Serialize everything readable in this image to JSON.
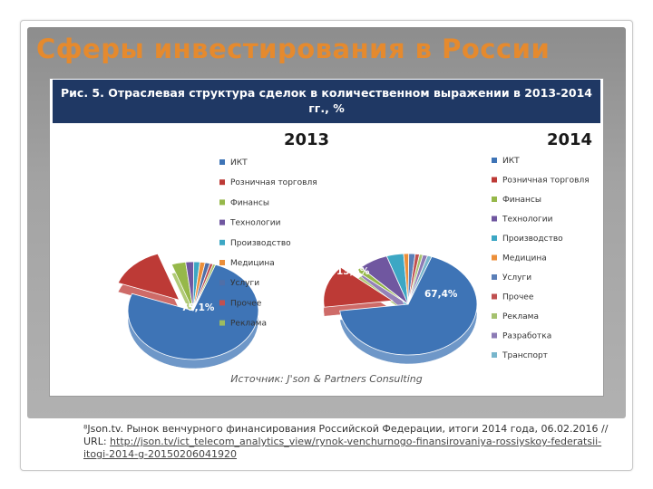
{
  "slide": {
    "title": "Сферы инвестирования в России"
  },
  "figure": {
    "caption": "Рис. 5. Отраслевая структура сделок в количественном выражении в 2013-2014 гг., %",
    "source": "Источник: J'son & Partners Consulting"
  },
  "chart_data": [
    {
      "type": "pie",
      "title": "2013",
      "categories": [
        "ИКТ",
        "Розничная торговля",
        "Финансы",
        "Технологии",
        "Производство",
        "Медицина",
        "Услуги",
        "Прочее",
        "Реклама"
      ],
      "values": [
        75.1,
        14.0,
        3.5,
        2.0,
        1.5,
        1.3,
        1.2,
        0.8,
        0.6
      ],
      "data_labels": [
        "75,1%",
        "14,0%",
        "",
        "",
        "",
        "",
        "",
        "",
        ""
      ],
      "colors": [
        "#3e74b6",
        "#bd3a36",
        "#96b84a",
        "#7057a0",
        "#3da7c4",
        "#ec8f3a",
        "#4f6fa8",
        "#c05050",
        "#9dbb60"
      ],
      "legend_placement": "right"
    },
    {
      "type": "pie",
      "title": "2014",
      "categories": [
        "ИКТ",
        "Розничная торговля",
        "Финансы",
        "Технологии",
        "Производство",
        "Медицина",
        "Услуги",
        "Прочее",
        "Реклама",
        "Разработка",
        "Транспорт"
      ],
      "values": [
        67.4,
        13.5,
        1.5,
        7.0,
        4.0,
        1.2,
        1.5,
        1.0,
        0.8,
        1.1,
        1.0
      ],
      "data_labels": [
        "67,4%",
        "13,5%",
        "",
        "",
        "",
        "",
        "",
        "",
        "",
        "",
        ""
      ],
      "colors": [
        "#3e74b6",
        "#bd3a36",
        "#96b84a",
        "#7057a0",
        "#3da7c4",
        "#ec8f3a",
        "#5a7fb8",
        "#c05050",
        "#a6c270",
        "#8c7bb5",
        "#78b6cc"
      ],
      "legend_placement": "right"
    }
  ],
  "footnote": {
    "text": "⁸Json.tv. Рынок венчурного финансирования Российской Федерации, итоги 2014 года, 06.02.2016 //",
    "url_prefix": "URL: ",
    "url": "http://json.tv/ict_telecom_analytics_view/rynok-venchurnogo-finansirovaniya-rossiyskoy-federatsii-itogi-2014-g-20150206041920"
  }
}
